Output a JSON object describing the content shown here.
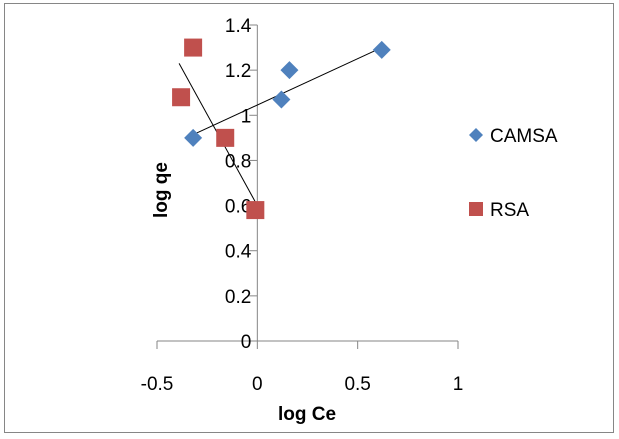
{
  "chart_data": {
    "type": "scatter",
    "title": "",
    "xlabel": "log Ce",
    "ylabel": "log qe",
    "xlim": [
      -0.5,
      1
    ],
    "ylim": [
      0,
      1.4
    ],
    "xticks": [
      -0.5,
      0,
      0.5,
      1
    ],
    "xtick_labels": [
      "-0.5",
      "0",
      "0.5",
      "1"
    ],
    "yticks": [
      0,
      0.2,
      0.4,
      0.6,
      0.8,
      1,
      1.2,
      1.4
    ],
    "ytick_labels": [
      "0",
      "0.2",
      "0.4",
      "0.6",
      "0.8",
      "1",
      "1.2",
      "1.4"
    ],
    "grid": false,
    "legend_position": "right",
    "series": [
      {
        "name": "CAMSA",
        "marker": "diamond",
        "color": "#4F81BD",
        "x": [
          -0.32,
          0.12,
          0.16,
          0.62
        ],
        "y": [
          0.9,
          1.07,
          1.2,
          1.29
        ],
        "trendline": {
          "x": [
            -0.33,
            0.62
          ],
          "y": [
            0.91,
            1.3
          ]
        }
      },
      {
        "name": "RSA",
        "marker": "square",
        "color": "#C0504D",
        "x": [
          -0.32,
          -0.38,
          -0.16,
          -0.01
        ],
        "y": [
          1.3,
          1.08,
          0.9,
          0.58
        ],
        "trendline": {
          "x": [
            -0.39,
            0.0
          ],
          "y": [
            1.23,
            0.6
          ]
        }
      }
    ]
  }
}
